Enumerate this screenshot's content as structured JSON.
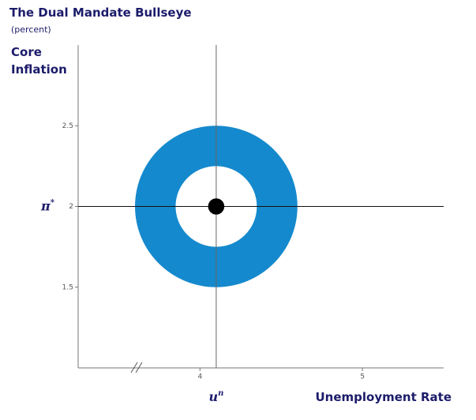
{
  "chart_data": {
    "type": "bullseye",
    "title": "The Dual Mandate Bullseye",
    "subtitle": "(percent)",
    "ylabel": [
      "Core",
      "Inflation"
    ],
    "xlabel": "Unemployment Rate",
    "xlim": [
      3.25,
      5.5
    ],
    "ylim": [
      1,
      3
    ],
    "xticks": [
      4,
      5
    ],
    "yticks": [
      1.5,
      2,
      2.5
    ],
    "center": {
      "x": 4.1,
      "y": 2
    },
    "rings": [
      {
        "radius": 0.5,
        "color": "#1589cd"
      },
      {
        "radius": 0.25,
        "color": "#ffffff"
      }
    ],
    "dot": {
      "radius": 0.05,
      "color": "#000000"
    },
    "reference_lines": {
      "x": 4.1,
      "y": 2
    },
    "x_ref_label": {
      "text": "u",
      "sup": "n"
    },
    "y_ref_label": {
      "text": "π",
      "sup": "*"
    }
  }
}
